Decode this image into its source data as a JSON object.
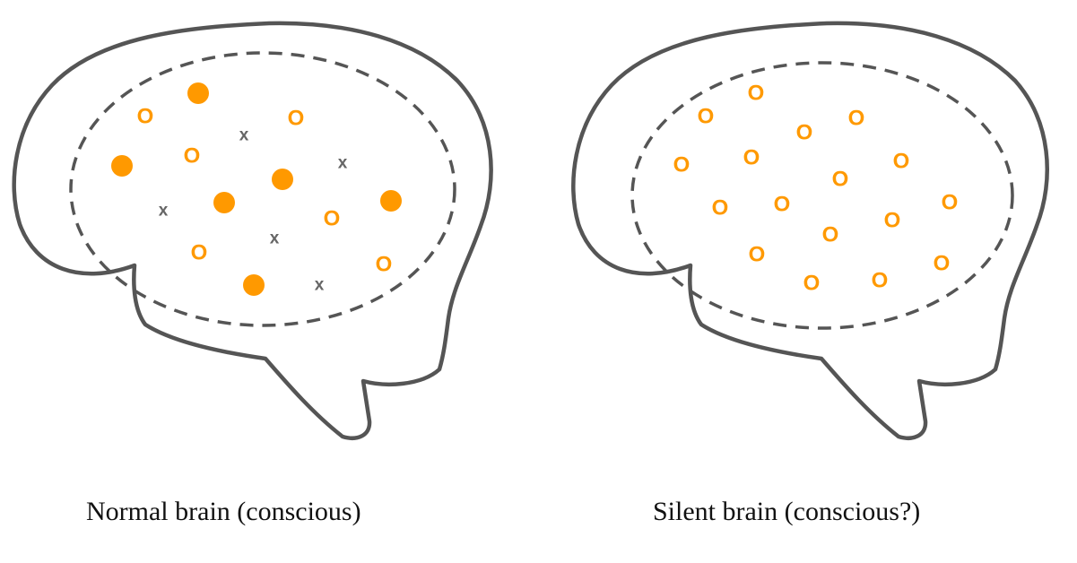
{
  "colors": {
    "outline": "#555555",
    "active": "#ff9900",
    "inactive": "#666666"
  },
  "panels": [
    {
      "caption": "Normal brain (conscious)",
      "neuron_states": [
        "active",
        "idle",
        "active",
        "idle",
        "inactive",
        "active",
        "idle",
        "inactive",
        "idle",
        "active",
        "active",
        "inactive",
        "active",
        "idle",
        "inactive",
        "idle",
        "active",
        "inactive",
        "idle"
      ]
    },
    {
      "caption": "Silent brain (conscious?)",
      "neuron_states": [
        "idle",
        "idle",
        "idle",
        "idle",
        "idle",
        "idle",
        "idle",
        "idle",
        "idle",
        "idle",
        "idle",
        "idle",
        "idle",
        "idle",
        "idle",
        "idle",
        "idle",
        "idle",
        "idle",
        "idle"
      ]
    }
  ],
  "mark_text": {
    "idle": "O",
    "inactive": "x"
  }
}
